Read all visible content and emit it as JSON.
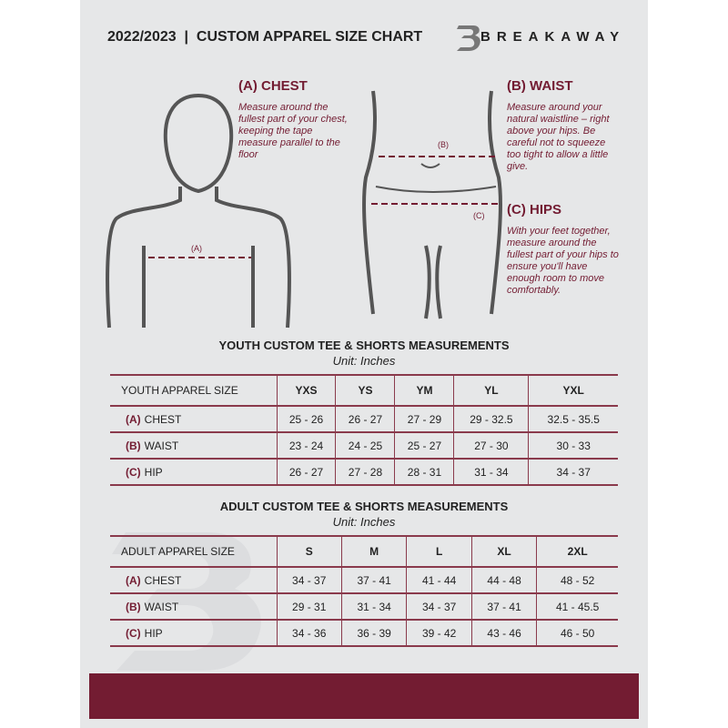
{
  "header": {
    "title": "2022/2023  |  CUSTOM APPAREL SIZE CHART",
    "brand": "BREAKAWAY"
  },
  "colors": {
    "accent": "#731c32",
    "background": "#e6e7e8"
  },
  "measures": {
    "chest": {
      "title": "(A) CHEST",
      "label": "(A)",
      "text": "Measure around the fullest part of your chest, keeping the tape measure parallel to the floor"
    },
    "waist": {
      "title": "(B) WAIST",
      "label": "(B)",
      "text": "Measure around your natural waistline – right above your hips. Be careful not to squeeze too tight to allow a little give."
    },
    "hips": {
      "title": "(C) HIPS",
      "label": "(C)",
      "text": "With your feet together, measure around the fullest part of your hips to ensure you'll have enough room to move comfortably."
    }
  },
  "youth": {
    "title": "YOUTH CUSTOM TEE & SHORTS MEASUREMENTS",
    "unit": "Unit: Inches",
    "header": "YOUTH APPAREL SIZE",
    "sizes": [
      "YXS",
      "YS",
      "YM",
      "YL",
      "YXL"
    ],
    "rows": [
      {
        "letter": "(A)",
        "name": "CHEST",
        "values": [
          "25 - 26",
          "26 - 27",
          "27 - 29",
          "29 - 32.5",
          "32.5 - 35.5"
        ]
      },
      {
        "letter": "(B)",
        "name": "WAIST",
        "values": [
          "23 - 24",
          "24 - 25",
          "25 - 27",
          "27 - 30",
          "30 - 33"
        ]
      },
      {
        "letter": "(C)",
        "name": "HIP",
        "values": [
          "26 - 27",
          "27 - 28",
          "28 - 31",
          "31 - 34",
          "34 - 37"
        ]
      }
    ]
  },
  "adult": {
    "title": "ADULT CUSTOM TEE & SHORTS MEASUREMENTS",
    "unit": "Unit: Inches",
    "header": "ADULT APPAREL SIZE",
    "sizes": [
      "S",
      "M",
      "L",
      "XL",
      "2XL"
    ],
    "rows": [
      {
        "letter": "(A)",
        "name": "CHEST",
        "values": [
          "34 - 37",
          "37 - 41",
          "41 - 44",
          "44 - 48",
          "48 - 52"
        ]
      },
      {
        "letter": "(B)",
        "name": "WAIST",
        "values": [
          "29 - 31",
          "31 - 34",
          "34 - 37",
          "37 - 41",
          "41 - 45.5"
        ]
      },
      {
        "letter": "(C)",
        "name": "HIP",
        "values": [
          "34 - 36",
          "36 - 39",
          "39 - 42",
          "43 - 46",
          "46 - 50"
        ]
      }
    ]
  }
}
